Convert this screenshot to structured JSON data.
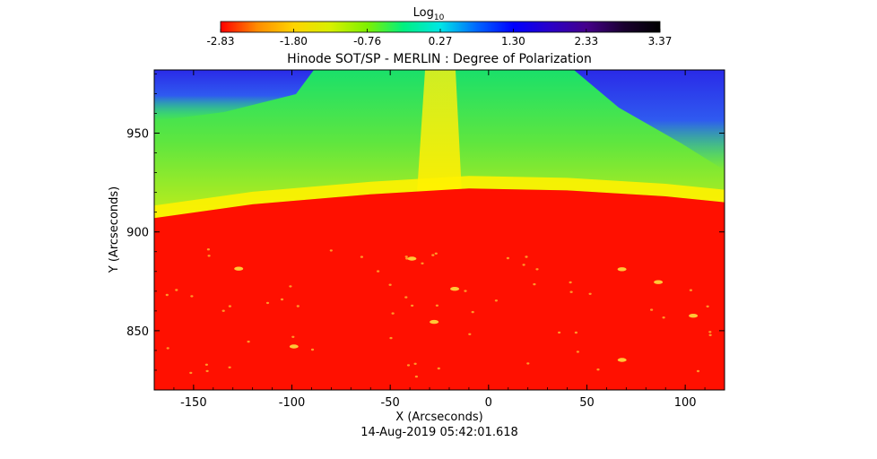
{
  "colorbar": {
    "label": "Log",
    "label_sub": "10",
    "tick_labels": [
      "-2.83",
      "-1.80",
      "-0.76",
      "0.27",
      "1.30",
      "2.33",
      "3.37"
    ],
    "range": [
      -2.83,
      3.37
    ],
    "colors": [
      "#ff0000",
      "#ff8c00",
      "#ffd400",
      "#d8f000",
      "#7ef000",
      "#00f080",
      "#00e6e6",
      "#0066ff",
      "#0000ff",
      "#2a00c8",
      "#45008a",
      "#1a0030",
      "#000000"
    ]
  },
  "chart_data": {
    "type": "heatmap",
    "title": "Hinode SOT/SP - MERLIN : Degree of Polarization",
    "xlabel": "X (Arcseconds)",
    "ylabel": "Y (Arcseconds)",
    "xlim": [
      -170,
      120
    ],
    "ylim": [
      820,
      982
    ],
    "xticks": [
      -150,
      -100,
      -50,
      0,
      50,
      100
    ],
    "yticks": [
      850,
      900,
      950
    ],
    "xtick_labels": [
      "-150",
      "-100",
      "-50",
      "0",
      "50",
      "100"
    ],
    "ytick_labels": [
      "850",
      "900",
      "950"
    ],
    "limb_y": [
      {
        "x": -170,
        "y": 907
      },
      {
        "x": -120,
        "y": 914
      },
      {
        "x": -60,
        "y": 919
      },
      {
        "x": -10,
        "y": 922
      },
      {
        "x": 40,
        "y": 921
      },
      {
        "x": 90,
        "y": 918
      },
      {
        "x": 120,
        "y": 915
      }
    ],
    "regions": {
      "disk": "red",
      "limb_band": "yellow",
      "off_limb": "green",
      "upper_corners": "blue"
    },
    "bright_spot_color": "#ffd23a"
  },
  "footer": {
    "timestamp": "14-Aug-2019 05:42:01.618"
  }
}
